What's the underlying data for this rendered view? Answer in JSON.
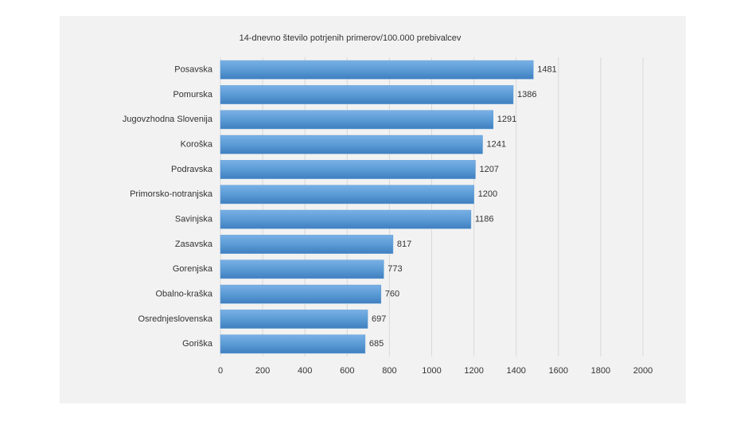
{
  "chart_data": {
    "type": "bar",
    "orientation": "horizontal",
    "title": "14-dnevno število potrjenih primerov/100.000 prebivalcev",
    "categories": [
      "Posavska",
      "Pomurska",
      "Jugovzhodna Slovenija",
      "Koroška",
      "Podravska",
      "Primorsko-notranjska",
      "Savinjska",
      "Zasavska",
      "Gorenjska",
      "Obalno-kraška",
      "Osrednjeslovenska",
      "Goriška"
    ],
    "values": [
      1481,
      1386,
      1291,
      1241,
      1207,
      1200,
      1186,
      817,
      773,
      760,
      697,
      685
    ],
    "color": "#5b9bd5",
    "xlim": [
      0,
      2000
    ],
    "xticks": [
      0,
      200,
      400,
      600,
      800,
      1000,
      1200,
      1400,
      1600,
      1800,
      2000
    ],
    "grid": true
  }
}
